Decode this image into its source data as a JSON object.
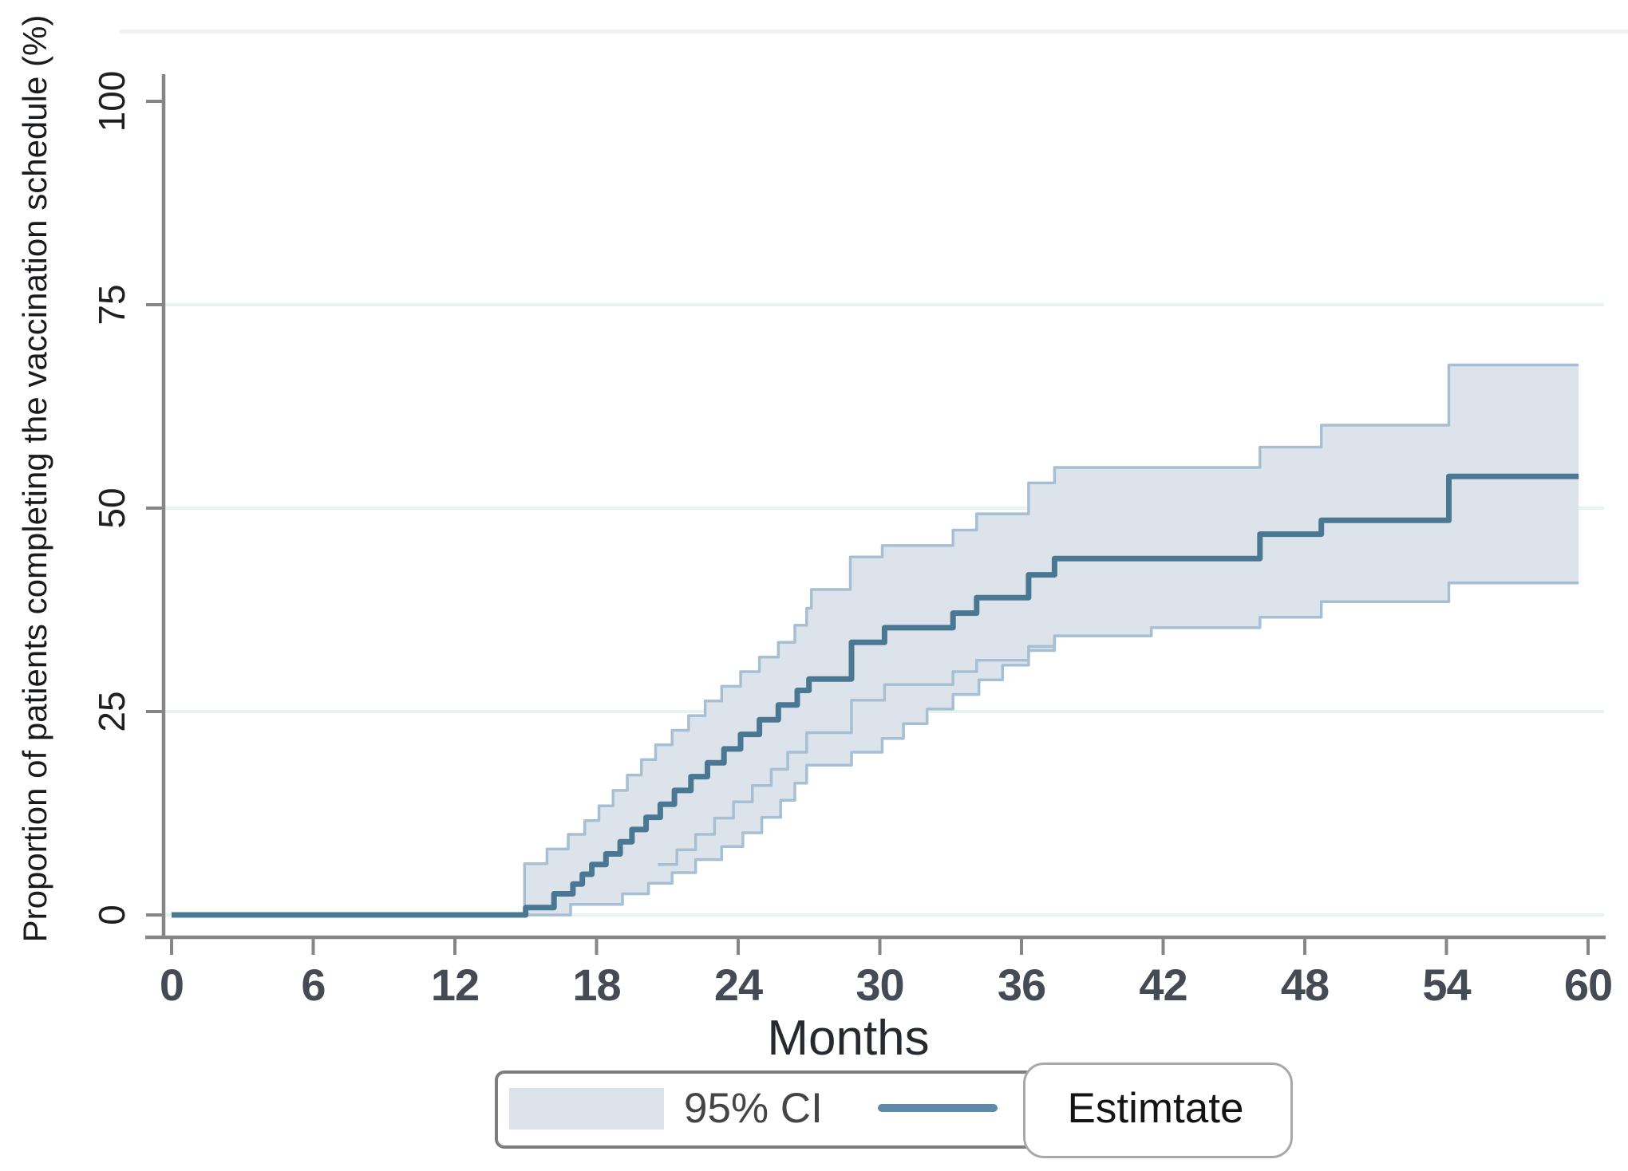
{
  "figure": {
    "y_axis_title": "Proportion of patients completing the vaccination schedule (%)",
    "x_axis_title": "Months",
    "legend": {
      "ci_label": "95% CI",
      "estimate_label": "Estimtate"
    }
  },
  "colors": {
    "background": "#ffffff",
    "axis": "#868686",
    "grid": "#e7f3ef",
    "top_strip": "#f1f1f1",
    "band_fill": "#dce3ea",
    "band_edge": "#a7bfd2",
    "estimate": "#4a7893",
    "legend_line": "#5e89a8",
    "legend_swatch": "#dbe2e9",
    "x_tick_text": "#454b55",
    "y_tick_text": "#1f1f1f"
  },
  "chart_data": {
    "type": "line",
    "subtype": "step-cumulative-incidence-with-ci-band",
    "title": "",
    "xlabel": "Months",
    "ylabel": "Proportion of patients completing the vaccination schedule (%)",
    "xlim": [
      0,
      60
    ],
    "ylim": [
      0,
      100
    ],
    "x_ticks": [
      0,
      6,
      12,
      18,
      24,
      30,
      36,
      42,
      48,
      54,
      60
    ],
    "y_ticks": [
      0,
      25,
      50,
      75,
      100
    ],
    "grid": "horizontal-light",
    "legend_position": "bottom-center",
    "legend_entries": [
      "95% CI",
      "Estimtate"
    ],
    "series": [
      {
        "name": "Estimtate",
        "role": "estimate",
        "style": "step-line",
        "steps": [
          [
            0,
            0
          ],
          [
            15,
            0.9
          ],
          [
            16.2,
            2.6
          ],
          [
            17,
            3.8
          ],
          [
            17.4,
            5
          ],
          [
            17.8,
            6.2
          ],
          [
            18.4,
            7.5
          ],
          [
            19,
            9
          ],
          [
            19.5,
            10.5
          ],
          [
            20.1,
            12
          ],
          [
            20.7,
            13.6
          ],
          [
            21.3,
            15.3
          ],
          [
            22,
            17
          ],
          [
            22.7,
            18.7
          ],
          [
            23.4,
            20.4
          ],
          [
            24.1,
            22.2
          ],
          [
            24.9,
            24
          ],
          [
            25.7,
            25.8
          ],
          [
            26.5,
            27.6
          ],
          [
            27,
            29
          ],
          [
            28.8,
            33.5
          ],
          [
            30.2,
            35.3
          ],
          [
            33.1,
            37.1
          ],
          [
            34.1,
            39
          ],
          [
            36.3,
            41.8
          ],
          [
            37.4,
            43.8
          ],
          [
            46.1,
            46.8
          ],
          [
            48.7,
            48.5
          ],
          [
            54.1,
            53.9
          ],
          [
            59.6,
            53.9
          ]
        ]
      },
      {
        "name": "95% CI upper bound",
        "role": "ci_upper",
        "style": "step-line-band-edge",
        "steps": [
          [
            14.95,
            0
          ],
          [
            14.95,
            6.3
          ],
          [
            15.9,
            8.1
          ],
          [
            16.8,
            9.9
          ],
          [
            17.5,
            11.6
          ],
          [
            18.1,
            13.4
          ],
          [
            18.7,
            15.3
          ],
          [
            19.3,
            17.2
          ],
          [
            19.9,
            19.1
          ],
          [
            20.5,
            20.9
          ],
          [
            21.2,
            22.7
          ],
          [
            21.9,
            24.5
          ],
          [
            22.6,
            26.3
          ],
          [
            23.3,
            28.1
          ],
          [
            24.1,
            29.9
          ],
          [
            24.9,
            31.7
          ],
          [
            25.7,
            33.5
          ],
          [
            26.4,
            35.6
          ],
          [
            26.9,
            37.7
          ],
          [
            27.1,
            40
          ],
          [
            28.75,
            44
          ],
          [
            30.1,
            45.4
          ],
          [
            33.1,
            47.3
          ],
          [
            34.1,
            49.3
          ],
          [
            36.3,
            53.1
          ],
          [
            37.4,
            55
          ],
          [
            46.1,
            57.5
          ],
          [
            48.7,
            60.2
          ],
          [
            54.1,
            67.6
          ],
          [
            59.6,
            67.6
          ]
        ]
      },
      {
        "name": "95% CI lower bound",
        "role": "ci_lower",
        "style": "step-line-band-edge",
        "steps": [
          [
            14.95,
            0
          ],
          [
            16.9,
            1.3
          ],
          [
            19.1,
            2.6
          ],
          [
            20.2,
            3.9
          ],
          [
            21.2,
            5.2
          ],
          [
            22.2,
            6.8
          ],
          [
            23.3,
            8.4
          ],
          [
            24.2,
            10.1
          ],
          [
            25,
            12
          ],
          [
            25.8,
            14.1
          ],
          [
            26.4,
            16.2
          ],
          [
            26.9,
            18.4
          ],
          [
            28.8,
            20
          ],
          [
            30.1,
            21.7
          ],
          [
            31,
            23.5
          ],
          [
            32,
            25.3
          ],
          [
            33.1,
            27.1
          ],
          [
            34.2,
            28.9
          ],
          [
            35.2,
            30.7
          ],
          [
            36.3,
            32.5
          ],
          [
            37.4,
            34.3
          ],
          [
            41.5,
            35.3
          ],
          [
            46.1,
            36.6
          ],
          [
            48.7,
            38.5
          ],
          [
            54.1,
            40.8
          ],
          [
            59.6,
            40.8
          ]
        ]
      },
      {
        "name": "95% CI lower bound (inner step line)",
        "role": "ci_lower_inner",
        "style": "step-line",
        "steps": [
          [
            20.6,
            6.2
          ],
          [
            21.4,
            8
          ],
          [
            22.2,
            9.9
          ],
          [
            23,
            11.9
          ],
          [
            23.8,
            13.9
          ],
          [
            24.6,
            15.9
          ],
          [
            25.4,
            17.9
          ],
          [
            26.1,
            20
          ],
          [
            26.9,
            22.4
          ],
          [
            28.8,
            26.4
          ],
          [
            30.2,
            28.3
          ],
          [
            33.1,
            29.9
          ],
          [
            34.1,
            31.3
          ],
          [
            36.3,
            33
          ],
          [
            37.4,
            34.3
          ]
        ]
      }
    ]
  }
}
